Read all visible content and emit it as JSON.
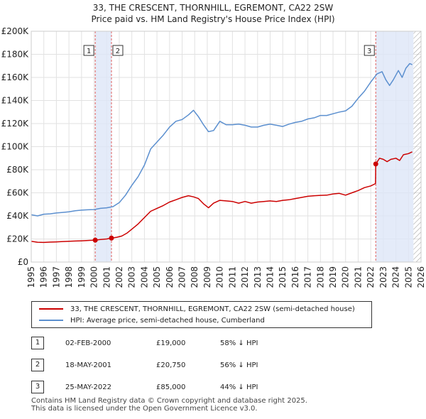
{
  "chart_data": {
    "type": "line",
    "title": "33, THE CRESCENT, THORNHILL, EGREMONT, CA22 2SW",
    "subtitle": "Price paid vs. HM Land Registry's House Price Index (HPI)",
    "xlabel": "",
    "ylabel": "",
    "xlim": [
      1995,
      2026
    ],
    "ylim": [
      0,
      200000
    ],
    "x_ticks": [
      "1995",
      "1996",
      "1997",
      "1998",
      "1999",
      "2000",
      "2001",
      "2002",
      "2003",
      "2004",
      "2005",
      "2006",
      "2007",
      "2008",
      "2009",
      "2010",
      "2011",
      "2012",
      "2013",
      "2014",
      "2015",
      "2016",
      "2017",
      "2018",
      "2019",
      "2020",
      "2021",
      "2022",
      "2023",
      "2024",
      "2025",
      "2026"
    ],
    "y_ticks": [
      "£0",
      "£20K",
      "£40K",
      "£60K",
      "£80K",
      "£100K",
      "£120K",
      "£140K",
      "£160K",
      "£180K",
      "£200K"
    ],
    "grid": true,
    "series": [
      {
        "name": "33, THE CRESCENT, THORNHILL, EGREMONT, CA22 2SW (semi-detached house)",
        "color": "#cc0000",
        "x": [
          1995.0,
          1995.5,
          1996.0,
          1996.5,
          1997.0,
          1997.5,
          1998.0,
          1998.5,
          1999.0,
          1999.5,
          2000.09,
          2000.5,
          2001.0,
          2001.38,
          2001.8,
          2002.2,
          2002.6,
          2003.0,
          2003.5,
          2004.0,
          2004.5,
          2005.0,
          2005.5,
          2006.0,
          2006.5,
          2007.0,
          2007.5,
          2007.9,
          2008.3,
          2008.7,
          2009.1,
          2009.5,
          2010.0,
          2010.5,
          2011.0,
          2011.5,
          2012.0,
          2012.5,
          2013.0,
          2013.5,
          2014.0,
          2014.5,
          2015.0,
          2015.5,
          2016.0,
          2016.5,
          2017.0,
          2017.5,
          2018.0,
          2018.5,
          2019.0,
          2019.5,
          2020.0,
          2020.5,
          2021.0,
          2021.5,
          2022.0,
          2022.38,
          2022.4,
          2022.7,
          2023.0,
          2023.3,
          2023.6,
          2024.0,
          2024.3,
          2024.6,
          2025.0,
          2025.3
        ],
        "values": [
          18000,
          17200,
          17000,
          17300,
          17500,
          17800,
          18000,
          18200,
          18400,
          18700,
          19000,
          19500,
          20000,
          20750,
          21500,
          22500,
          25000,
          28500,
          33000,
          38500,
          44000,
          46500,
          49000,
          52000,
          54000,
          56000,
          57500,
          56500,
          55000,
          50500,
          47000,
          51000,
          53500,
          53000,
          52500,
          51000,
          52500,
          51000,
          52000,
          52500,
          53000,
          52500,
          53500,
          54000,
          55000,
          56000,
          57000,
          57500,
          57800,
          58000,
          59000,
          59500,
          58000,
          60000,
          62000,
          64500,
          66000,
          68000,
          85000,
          90000,
          89000,
          87000,
          89000,
          90000,
          88000,
          93000,
          94000,
          95500
        ]
      },
      {
        "name": "HPI: Average price, semi-detached house, Cumberland",
        "color": "#5b8fcf",
        "x": [
          1995.0,
          1995.5,
          1996.0,
          1996.5,
          1997.0,
          1997.5,
          1998.0,
          1998.5,
          1999.0,
          1999.5,
          2000.0,
          2000.5,
          2001.0,
          2001.5,
          2002.0,
          2002.5,
          2003.0,
          2003.5,
          2004.0,
          2004.5,
          2005.0,
          2005.5,
          2006.0,
          2006.5,
          2007.0,
          2007.5,
          2007.9,
          2008.3,
          2008.7,
          2009.1,
          2009.5,
          2010.0,
          2010.5,
          2011.0,
          2011.5,
          2012.0,
          2012.5,
          2013.0,
          2013.5,
          2014.0,
          2014.5,
          2015.0,
          2015.5,
          2016.0,
          2016.5,
          2017.0,
          2017.5,
          2018.0,
          2018.5,
          2019.0,
          2019.5,
          2020.0,
          2020.5,
          2021.0,
          2021.5,
          2022.0,
          2022.5,
          2022.9,
          2023.2,
          2023.5,
          2023.8,
          2024.2,
          2024.5,
          2024.8,
          2025.1,
          2025.3
        ],
        "values": [
          41000,
          40000,
          41500,
          41800,
          42500,
          43000,
          43500,
          44500,
          45000,
          45300,
          45500,
          46500,
          47000,
          48000,
          51500,
          58000,
          66500,
          74000,
          84000,
          98000,
          104000,
          110000,
          117000,
          122000,
          123500,
          127500,
          131500,
          126000,
          119000,
          113000,
          114000,
          122000,
          119000,
          119000,
          119500,
          118500,
          117000,
          117000,
          118500,
          119500,
          118500,
          117500,
          119500,
          121000,
          122000,
          124000,
          125000,
          127000,
          127000,
          128500,
          130000,
          131000,
          135000,
          142000,
          148000,
          156000,
          163000,
          165000,
          158000,
          153000,
          158000,
          166000,
          160000,
          168000,
          172000,
          171000
        ]
      }
    ],
    "sales": [
      {
        "label": "1",
        "x": 2000.09,
        "price": 19000
      },
      {
        "label": "2",
        "x": 2001.38,
        "price": 20750
      },
      {
        "label": "3",
        "x": 2022.4,
        "price": 85000
      }
    ],
    "shaded_periods": [
      {
        "from": 2000.09,
        "to": 2001.38
      },
      {
        "from": 2022.4,
        "to": 2025.4
      }
    ],
    "hatched_period": {
      "from": 2025.4,
      "to": 2026
    }
  },
  "legend": {
    "property_label": "33, THE CRESCENT, THORNHILL, EGREMONT, CA22 2SW (semi-detached house)",
    "hpi_label": "HPI: Average price, semi-detached house, Cumberland"
  },
  "sales_table": [
    {
      "num": "1",
      "date": "02-FEB-2000",
      "price": "£19,000",
      "hpi": "58% ↓ HPI"
    },
    {
      "num": "2",
      "date": "18-MAY-2001",
      "price": "£20,750",
      "hpi": "56% ↓ HPI"
    },
    {
      "num": "3",
      "date": "25-MAY-2022",
      "price": "£85,000",
      "hpi": "44% ↓ HPI"
    }
  ],
  "footer": {
    "line1": "Contains HM Land Registry data © Crown copyright and database right 2025.",
    "line2": "This data is licensed under the Open Government Licence v3.0."
  }
}
